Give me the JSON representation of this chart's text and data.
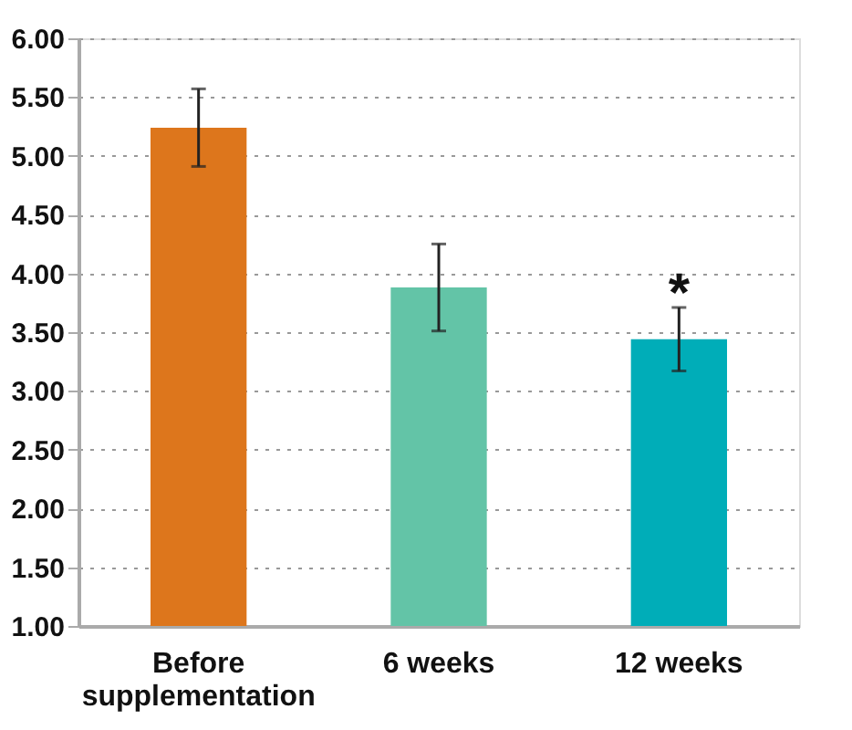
{
  "chart_data": {
    "type": "bar",
    "categories": [
      "Before supplementation",
      "6 weeks",
      "12 weeks"
    ],
    "values": [
      5.24,
      3.88,
      3.44
    ],
    "colors": [
      "#dd761c",
      "#63c4a7",
      "#00adb8"
    ],
    "errors": [
      0.33,
      0.37,
      0.27
    ],
    "annotations": [
      "*"
    ],
    "ylim": [
      1.0,
      6.0
    ],
    "yticks": [
      {
        "value": 1.0,
        "label": "1.00"
      },
      {
        "value": 1.5,
        "label": "1.50"
      },
      {
        "value": 2.0,
        "label": "2.00"
      },
      {
        "value": 2.5,
        "label": "2.50"
      },
      {
        "value": 3.0,
        "label": "3.00"
      },
      {
        "value": 3.5,
        "label": "3.50"
      },
      {
        "value": 4.0,
        "label": "4.00"
      },
      {
        "value": 4.5,
        "label": "4.50"
      },
      {
        "value": 5.0,
        "label": "5.00"
      },
      {
        "value": 5.5,
        "label": "5.50"
      },
      {
        "value": 6.0,
        "label": "6.00"
      }
    ],
    "grid": "y"
  }
}
